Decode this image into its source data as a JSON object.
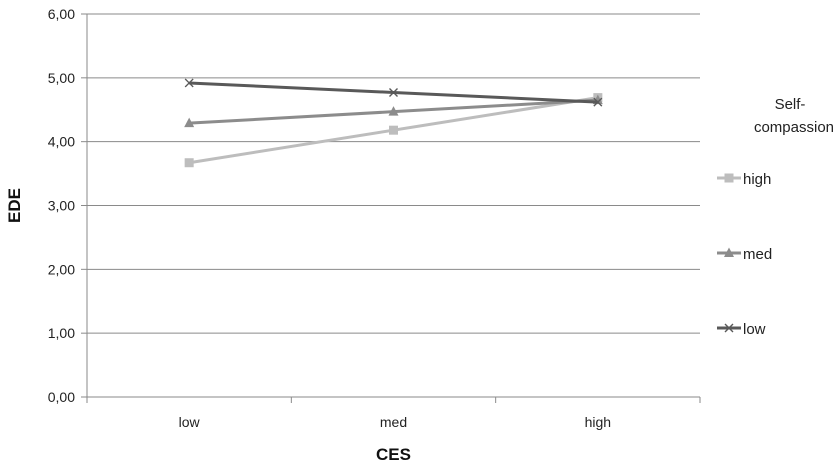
{
  "chart_data": {
    "type": "line",
    "categories": [
      "low",
      "med",
      "high"
    ],
    "xlabel": "CES",
    "ylabel": "EDE",
    "ylim": [
      0,
      6
    ],
    "yticks": [
      0,
      1,
      2,
      3,
      4,
      5,
      6
    ],
    "ytick_labels": [
      "0,00",
      "1,00",
      "2,00",
      "3,00",
      "4,00",
      "5,00",
      "6,00"
    ],
    "grid": true,
    "legend": {
      "title_lines": [
        "Self-",
        "compassion"
      ],
      "placement": "right"
    },
    "series": [
      {
        "name": "high",
        "values": [
          3.67,
          4.18,
          4.69
        ],
        "color": "#bdbdbd",
        "marker": "square"
      },
      {
        "name": "med",
        "values": [
          4.29,
          4.47,
          4.65
        ],
        "color": "#8c8c8c",
        "marker": "triangle"
      },
      {
        "name": "low",
        "values": [
          4.92,
          4.77,
          4.62
        ],
        "color": "#595959",
        "marker": "x"
      }
    ]
  }
}
